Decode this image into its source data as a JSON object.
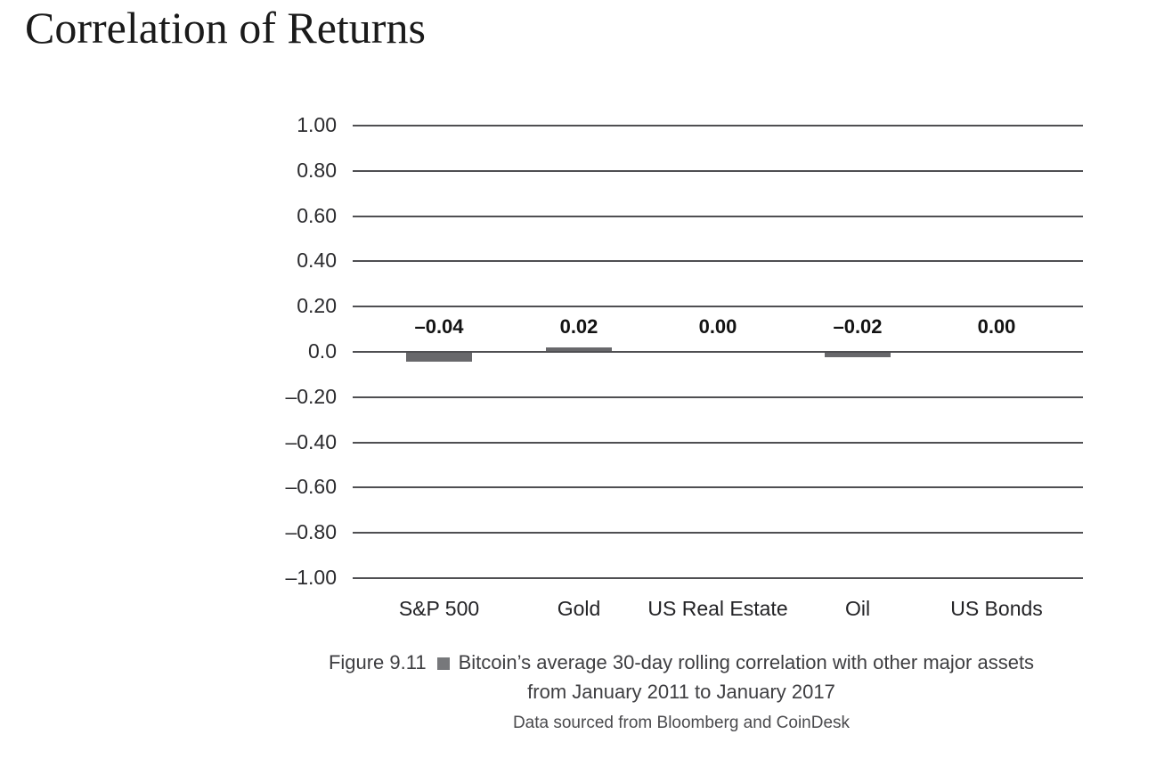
{
  "page": {
    "title": "Correlation of Returns"
  },
  "chart_data": {
    "type": "bar",
    "title": "Correlation of Returns",
    "categories": [
      "S&P 500",
      "Gold",
      "US Real Estate",
      "Oil",
      "US Bonds"
    ],
    "values": [
      -0.04,
      0.02,
      0.0,
      -0.02,
      0.0
    ],
    "value_labels": [
      "–0.04",
      "0.02",
      "0.00",
      "–0.02",
      "0.00"
    ],
    "y_ticks": [
      1.0,
      0.8,
      0.6,
      0.4,
      0.2,
      0.0,
      -0.2,
      -0.4,
      -0.6,
      -0.8,
      -1.0
    ],
    "y_tick_labels": [
      "1.00",
      "0.80",
      "0.60",
      "0.40",
      "0.20",
      "0.0",
      "–0.20",
      "–0.40",
      "–0.60",
      "–0.80",
      "–1.00"
    ],
    "ylim": [
      -1.0,
      1.0
    ],
    "grid": true,
    "legend_position": "none",
    "xlabel": "",
    "ylabel": "",
    "bar_color": "#68686b",
    "grid_color": "#4f4f52",
    "value_label_color": "#131313"
  },
  "caption": {
    "figure_label": "Figure 9.11",
    "bullet_icon": "square-bullet",
    "text": "Bitcoin’s average 30-day rolling correlation with other major assets",
    "date_range": "from January 2011 to January 2017",
    "source": "Data sourced from Bloomberg and CoinDesk"
  }
}
